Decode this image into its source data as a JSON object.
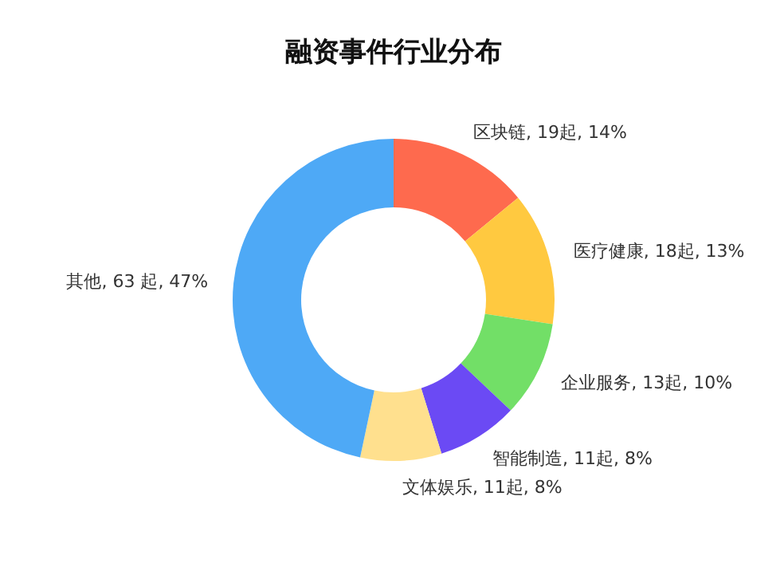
{
  "chart_data": {
    "type": "donut",
    "title": "融资事件行业分布",
    "categories": [
      "区块链",
      "医疗健康",
      "企业服务",
      "智能制造",
      "文体娱乐",
      "其他"
    ],
    "values": [
      19,
      18,
      13,
      11,
      11,
      63
    ],
    "colors": [
      "#fe6a4e",
      "#ffc940",
      "#72df67",
      "#6b4af4",
      "#ffe08e",
      "#4ea9f6"
    ],
    "value_labels": [
      ", 19起, 14%",
      ", 18起, 13%",
      ", 13起, 10%",
      ", 11起, 8%",
      ", 11起, 8%",
      ", 63 起, 47%"
    ]
  }
}
